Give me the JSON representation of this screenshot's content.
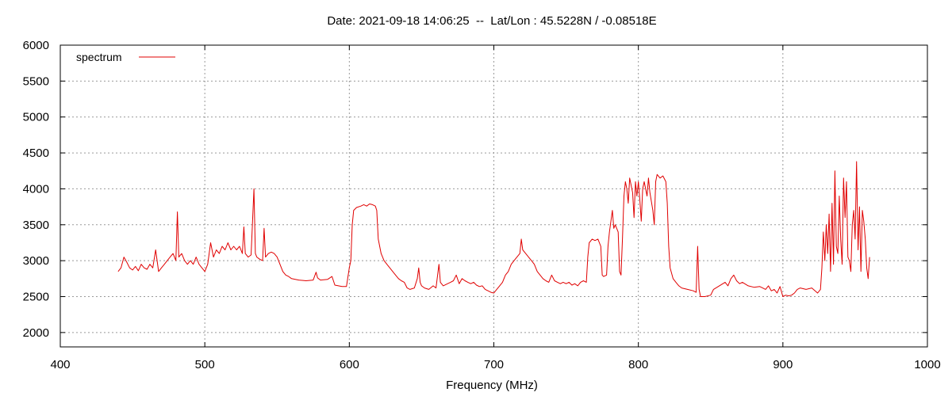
{
  "chart_data": {
    "type": "line",
    "title": "Date: 2021-09-18 14:06:25  --  Lat/Lon : 45.5228N / -0.08518E",
    "xlabel": "Frequency (MHz)",
    "ylabel": "",
    "xlim": [
      400,
      1000
    ],
    "ylim": [
      1800,
      6000
    ],
    "xticks": [
      400,
      500,
      600,
      700,
      800,
      900,
      1000
    ],
    "yticks": [
      2000,
      2500,
      3000,
      3500,
      4000,
      4500,
      5000,
      5500,
      6000
    ],
    "grid": true,
    "legend_position": "top-left",
    "series": [
      {
        "name": "spectrum",
        "color": "#e00000",
        "points": [
          [
            440,
            2850
          ],
          [
            442,
            2900
          ],
          [
            444,
            3050
          ],
          [
            446,
            2980
          ],
          [
            448,
            2900
          ],
          [
            450,
            2870
          ],
          [
            452,
            2920
          ],
          [
            454,
            2860
          ],
          [
            456,
            2950
          ],
          [
            458,
            2900
          ],
          [
            460,
            2880
          ],
          [
            462,
            2950
          ],
          [
            464,
            2900
          ],
          [
            466,
            3150
          ],
          [
            468,
            2850
          ],
          [
            470,
            2900
          ],
          [
            472,
            2950
          ],
          [
            474,
            3000
          ],
          [
            476,
            3050
          ],
          [
            478,
            3100
          ],
          [
            480,
            3000
          ],
          [
            481,
            3680
          ],
          [
            482,
            3050
          ],
          [
            484,
            3100
          ],
          [
            486,
            3000
          ],
          [
            488,
            2950
          ],
          [
            490,
            3000
          ],
          [
            492,
            2950
          ],
          [
            494,
            3050
          ],
          [
            496,
            2950
          ],
          [
            498,
            2900
          ],
          [
            500,
            2850
          ],
          [
            502,
            2950
          ],
          [
            504,
            3250
          ],
          [
            506,
            3050
          ],
          [
            508,
            3150
          ],
          [
            510,
            3100
          ],
          [
            512,
            3200
          ],
          [
            514,
            3150
          ],
          [
            516,
            3250
          ],
          [
            518,
            3150
          ],
          [
            520,
            3200
          ],
          [
            522,
            3150
          ],
          [
            524,
            3200
          ],
          [
            526,
            3100
          ],
          [
            527,
            3470
          ],
          [
            528,
            3100
          ],
          [
            530,
            3050
          ],
          [
            532,
            3080
          ],
          [
            534,
            4000
          ],
          [
            535,
            3100
          ],
          [
            536,
            3050
          ],
          [
            538,
            3020
          ],
          [
            540,
            3000
          ],
          [
            541,
            3450
          ],
          [
            542,
            3050
          ],
          [
            544,
            3100
          ],
          [
            546,
            3120
          ],
          [
            548,
            3100
          ],
          [
            550,
            3050
          ],
          [
            552,
            2950
          ],
          [
            554,
            2850
          ],
          [
            556,
            2800
          ],
          [
            558,
            2780
          ],
          [
            560,
            2750
          ],
          [
            565,
            2730
          ],
          [
            570,
            2720
          ],
          [
            575,
            2730
          ],
          [
            577,
            2840
          ],
          [
            578,
            2760
          ],
          [
            580,
            2730
          ],
          [
            585,
            2740
          ],
          [
            588,
            2780
          ],
          [
            590,
            2660
          ],
          [
            595,
            2640
          ],
          [
            598,
            2640
          ],
          [
            600,
            2900
          ],
          [
            601,
            3000
          ],
          [
            602,
            3500
          ],
          [
            603,
            3700
          ],
          [
            605,
            3740
          ],
          [
            608,
            3760
          ],
          [
            610,
            3780
          ],
          [
            612,
            3760
          ],
          [
            614,
            3790
          ],
          [
            616,
            3780
          ],
          [
            618,
            3760
          ],
          [
            619,
            3700
          ],
          [
            620,
            3300
          ],
          [
            622,
            3100
          ],
          [
            624,
            3000
          ],
          [
            626,
            2950
          ],
          [
            628,
            2900
          ],
          [
            630,
            2850
          ],
          [
            632,
            2800
          ],
          [
            634,
            2750
          ],
          [
            636,
            2720
          ],
          [
            638,
            2700
          ],
          [
            640,
            2620
          ],
          [
            642,
            2600
          ],
          [
            645,
            2620
          ],
          [
            647,
            2750
          ],
          [
            648,
            2900
          ],
          [
            649,
            2700
          ],
          [
            650,
            2650
          ],
          [
            652,
            2620
          ],
          [
            655,
            2600
          ],
          [
            658,
            2650
          ],
          [
            660,
            2620
          ],
          [
            662,
            2950
          ],
          [
            663,
            2700
          ],
          [
            665,
            2650
          ],
          [
            668,
            2680
          ],
          [
            670,
            2700
          ],
          [
            672,
            2720
          ],
          [
            674,
            2800
          ],
          [
            676,
            2680
          ],
          [
            678,
            2750
          ],
          [
            680,
            2720
          ],
          [
            682,
            2700
          ],
          [
            684,
            2680
          ],
          [
            686,
            2700
          ],
          [
            688,
            2660
          ],
          [
            690,
            2640
          ],
          [
            692,
            2650
          ],
          [
            694,
            2600
          ],
          [
            696,
            2580
          ],
          [
            698,
            2560
          ],
          [
            700,
            2550
          ],
          [
            702,
            2600
          ],
          [
            704,
            2650
          ],
          [
            706,
            2700
          ],
          [
            708,
            2800
          ],
          [
            710,
            2850
          ],
          [
            712,
            2950
          ],
          [
            714,
            3000
          ],
          [
            716,
            3050
          ],
          [
            718,
            3100
          ],
          [
            719,
            3300
          ],
          [
            720,
            3150
          ],
          [
            722,
            3100
          ],
          [
            724,
            3050
          ],
          [
            726,
            3000
          ],
          [
            728,
            2950
          ],
          [
            730,
            2850
          ],
          [
            732,
            2800
          ],
          [
            734,
            2750
          ],
          [
            736,
            2720
          ],
          [
            738,
            2700
          ],
          [
            740,
            2800
          ],
          [
            742,
            2720
          ],
          [
            744,
            2700
          ],
          [
            746,
            2680
          ],
          [
            748,
            2700
          ],
          [
            750,
            2680
          ],
          [
            752,
            2700
          ],
          [
            754,
            2660
          ],
          [
            756,
            2680
          ],
          [
            758,
            2650
          ],
          [
            760,
            2700
          ],
          [
            762,
            2720
          ],
          [
            764,
            2700
          ],
          [
            765,
            3050
          ],
          [
            766,
            3250
          ],
          [
            768,
            3300
          ],
          [
            770,
            3280
          ],
          [
            772,
            3300
          ],
          [
            774,
            3200
          ],
          [
            775,
            2800
          ],
          [
            776,
            2780
          ],
          [
            778,
            2800
          ],
          [
            779,
            3200
          ],
          [
            780,
            3400
          ],
          [
            782,
            3700
          ],
          [
            783,
            3450
          ],
          [
            784,
            3500
          ],
          [
            786,
            3400
          ],
          [
            787,
            2850
          ],
          [
            788,
            2800
          ],
          [
            789,
            3300
          ],
          [
            790,
            3900
          ],
          [
            791,
            4100
          ],
          [
            792,
            4000
          ],
          [
            793,
            3800
          ],
          [
            794,
            4150
          ],
          [
            796,
            3950
          ],
          [
            797,
            3600
          ],
          [
            798,
            4100
          ],
          [
            799,
            3900
          ],
          [
            800,
            4100
          ],
          [
            801,
            3850
          ],
          [
            802,
            3550
          ],
          [
            803,
            4000
          ],
          [
            804,
            4100
          ],
          [
            806,
            3900
          ],
          [
            807,
            4150
          ],
          [
            808,
            3950
          ],
          [
            810,
            3700
          ],
          [
            811,
            3500
          ],
          [
            812,
            4100
          ],
          [
            813,
            4200
          ],
          [
            815,
            4150
          ],
          [
            817,
            4180
          ],
          [
            819,
            4100
          ],
          [
            820,
            3800
          ],
          [
            821,
            3200
          ],
          [
            822,
            2900
          ],
          [
            824,
            2750
          ],
          [
            826,
            2700
          ],
          [
            828,
            2650
          ],
          [
            830,
            2620
          ],
          [
            834,
            2600
          ],
          [
            838,
            2580
          ],
          [
            840,
            2560
          ],
          [
            841,
            3200
          ],
          [
            842,
            2600
          ],
          [
            843,
            2500
          ],
          [
            846,
            2500
          ],
          [
            850,
            2520
          ],
          [
            852,
            2600
          ],
          [
            856,
            2650
          ],
          [
            860,
            2700
          ],
          [
            862,
            2650
          ],
          [
            864,
            2750
          ],
          [
            866,
            2800
          ],
          [
            868,
            2720
          ],
          [
            870,
            2680
          ],
          [
            872,
            2700
          ],
          [
            876,
            2650
          ],
          [
            880,
            2630
          ],
          [
            884,
            2640
          ],
          [
            886,
            2620
          ],
          [
            888,
            2600
          ],
          [
            890,
            2650
          ],
          [
            892,
            2580
          ],
          [
            894,
            2600
          ],
          [
            896,
            2550
          ],
          [
            898,
            2640
          ],
          [
            900,
            2500
          ],
          [
            902,
            2520
          ],
          [
            904,
            2510
          ],
          [
            906,
            2520
          ],
          [
            908,
            2550
          ],
          [
            910,
            2600
          ],
          [
            912,
            2620
          ],
          [
            916,
            2600
          ],
          [
            920,
            2620
          ],
          [
            924,
            2550
          ],
          [
            926,
            2600
          ],
          [
            927,
            2900
          ],
          [
            928,
            3400
          ],
          [
            929,
            3000
          ],
          [
            930,
            3500
          ],
          [
            931,
            3100
          ],
          [
            932,
            3650
          ],
          [
            933,
            2850
          ],
          [
            934,
            3800
          ],
          [
            935,
            2950
          ],
          [
            936,
            4250
          ],
          [
            937,
            3200
          ],
          [
            938,
            3100
          ],
          [
            939,
            3900
          ],
          [
            940,
            3300
          ],
          [
            941,
            2950
          ],
          [
            942,
            4150
          ],
          [
            943,
            3600
          ],
          [
            944,
            4100
          ],
          [
            945,
            3050
          ],
          [
            946,
            3000
          ],
          [
            947,
            2850
          ],
          [
            948,
            3500
          ],
          [
            949,
            3700
          ],
          [
            950,
            3300
          ],
          [
            951,
            4380
          ],
          [
            952,
            3150
          ],
          [
            953,
            3750
          ],
          [
            954,
            2850
          ],
          [
            955,
            3700
          ],
          [
            956,
            3550
          ],
          [
            957,
            3300
          ],
          [
            958,
            2900
          ],
          [
            959,
            2750
          ],
          [
            960,
            3050
          ]
        ]
      }
    ]
  }
}
